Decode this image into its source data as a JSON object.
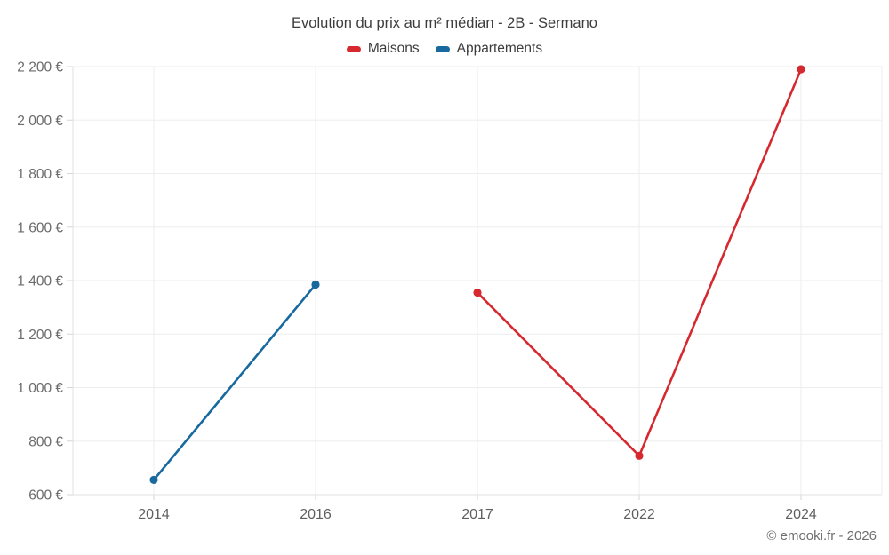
{
  "chart_data": {
    "type": "line",
    "title": "Evolution du prix au m² médian - 2B - Sermano",
    "xlabel": "",
    "ylabel": "",
    "categories": [
      "2014",
      "2016",
      "2017",
      "2022",
      "2024"
    ],
    "ylim": [
      600,
      2200
    ],
    "grid": true,
    "legend_position": "top",
    "y_ticks": [
      {
        "value": 600,
        "label": "600 €"
      },
      {
        "value": 800,
        "label": "800 €"
      },
      {
        "value": 1000,
        "label": "1 000 €"
      },
      {
        "value": 1200,
        "label": "1 200 €"
      },
      {
        "value": 1400,
        "label": "1 400 €"
      },
      {
        "value": 1600,
        "label": "1 600 €"
      },
      {
        "value": 1800,
        "label": "1 800 €"
      },
      {
        "value": 2000,
        "label": "2 000 €"
      },
      {
        "value": 2200,
        "label": "2 200 €"
      }
    ],
    "series": [
      {
        "name": "Maisons",
        "color": "#d6292f",
        "points": [
          {
            "x": "2017",
            "y": 1355
          },
          {
            "x": "2022",
            "y": 745
          },
          {
            "x": "2024",
            "y": 2190
          }
        ]
      },
      {
        "name": "Appartements",
        "color": "#17699e",
        "points": [
          {
            "x": "2014",
            "y": 655
          },
          {
            "x": "2016",
            "y": 1385
          }
        ]
      }
    ],
    "colors": {
      "grid_line": "#ededed",
      "axis_line": "#e0e0e0",
      "tick_mark": "#d6d6d6",
      "tick_text": "#6b6b6b",
      "title_text": "#3d3d3d"
    }
  },
  "footer": {
    "copyright": "© emooki.fr - 2026"
  }
}
